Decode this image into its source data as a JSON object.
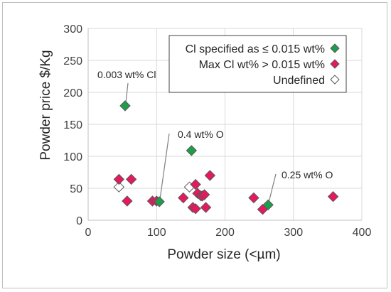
{
  "chart_data": {
    "type": "scatter",
    "xlabel": "Powder size (<µm)",
    "ylabel": "Powder price $/Kg",
    "xlim": [
      0,
      400
    ],
    "ylim": [
      0,
      300
    ],
    "x_ticks": [
      "0",
      "100",
      "200",
      "300",
      "400"
    ],
    "y_ticks": [
      "0",
      "50",
      "100",
      "150",
      "200",
      "250",
      "300"
    ],
    "grid": "major",
    "legend": "top-right",
    "series": [
      {
        "name": "Cl specified as ≤ 0.015 wt%",
        "color": "#1e9e4a",
        "marker": "filled-diamond",
        "points": [
          [
            54,
            179
          ],
          [
            104,
            29
          ],
          [
            151,
            109
          ],
          [
            263,
            24
          ]
        ]
      },
      {
        "name": "Max Cl wt% > 0.015 wt%",
        "color": "#e6195e",
        "marker": "filled-diamond",
        "points": [
          [
            45,
            64
          ],
          [
            57,
            30
          ],
          [
            63,
            64
          ],
          [
            94,
            30
          ],
          [
            100,
            30
          ],
          [
            139,
            35
          ],
          [
            153,
            20
          ],
          [
            157,
            56
          ],
          [
            157,
            18
          ],
          [
            160,
            42
          ],
          [
            165,
            38
          ],
          [
            167,
            38
          ],
          [
            170,
            40
          ],
          [
            172,
            20
          ],
          [
            178,
            70
          ],
          [
            242,
            35
          ],
          [
            255,
            17
          ],
          [
            358,
            37
          ]
        ]
      },
      {
        "name": "Undefined",
        "color": "#ffffff",
        "marker": "hollow-diamond",
        "points": [
          [
            45,
            52
          ],
          [
            148,
            52
          ]
        ]
      }
    ],
    "annotations": [
      {
        "text": "0.003 wt% Cl",
        "point": [
          54,
          179
        ]
      },
      {
        "text": "0.4 wt% O",
        "point": [
          104,
          29
        ]
      },
      {
        "text": "0.25 wt% O",
        "point": [
          263,
          24
        ]
      }
    ]
  }
}
